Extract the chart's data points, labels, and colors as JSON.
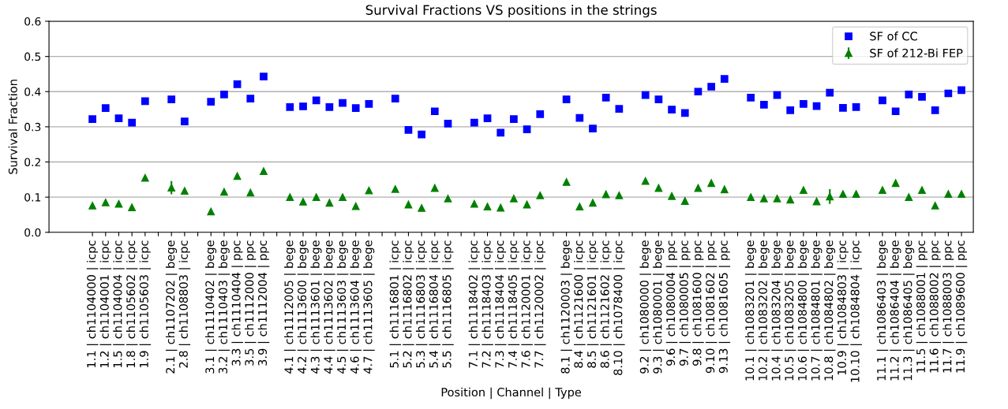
{
  "chart_data": {
    "type": "scatter",
    "title": "Survival Fractions VS positions in the strings",
    "xlabel": "Position | Channel | Type",
    "ylabel": "Survival Fraction",
    "categories": [
      "1.1 | ch1104000 | icpc",
      "1.2 | ch1104001 | icpc",
      "1.5 | ch1104004 | icpc",
      "1.8 | ch1105602 | icpc",
      "1.9 | ch1105603 | icpc",
      null,
      "2.1 | ch1107202 | bege",
      "2.8 | ch1108803 | icpc",
      null,
      "3.1 | ch1110402 | bege",
      "3.2 | ch1110403 | bege",
      "3.3 | ch1110404 | ppc",
      "3.5 | ch1112000 | ppc",
      "3.9 | ch1112004 | ppc",
      null,
      "4.1 | ch1112005 | bege",
      "4.2 | ch1113600 | bege",
      "4.3 | ch1113601 | bege",
      "4.4 | ch1113602 | bege",
      "4.5 | ch1113603 | bege",
      "4.6 | ch1113604 | bege",
      "4.7 | ch1113605 | bege",
      null,
      "5.1 | ch1116801 | icpc",
      "5.2 | ch1116802 | icpc",
      "5.3 | ch1116803 | icpc",
      "5.4 | ch1116804 | icpc",
      "5.5 | ch1116805 | icpc",
      null,
      "7.1 | ch1118402 | icpc",
      "7.2 | ch1118403 | icpc",
      "7.3 | ch1118404 | icpc",
      "7.4 | ch1118405 | icpc",
      "7.6 | ch1120001 | icpc",
      "7.7 | ch1120002 | icpc",
      null,
      "8.1 | ch1120003 | bege",
      "8.4 | ch1121600 | icpc",
      "8.5 | ch1121601 | icpc",
      "8.6 | ch1121602 | icpc",
      "8.10 | ch1078400 | icpc",
      null,
      "9.2 | ch1080000 | bege",
      "9.3 | ch1080001 | bege",
      "9.6 | ch1080004 | ppc",
      "9.7 | ch1080005 | ppc",
      "9.8 | ch1081600 | ppc",
      "9.10 | ch1081602 | ppc",
      "9.13 | ch1081605 | ppc",
      null,
      "10.1 | ch1083201 | bege",
      "10.2 | ch1083202 | bege",
      "10.4 | ch1083204 | bege",
      "10.5 | ch1083205 | bege",
      "10.6 | ch1084800 | bege",
      "10.7 | ch1084801 | bege",
      "10.8 | ch1084802 | bege",
      "10.9 | ch1084803 | icpc",
      "10.10 | ch1084804 | icpc",
      null,
      "11.1 | ch1086403 | bege",
      "11.2 | ch1086404 | bege",
      "11.3 | ch1086405 | bege",
      "11.5 | ch1088001 | ppc",
      "11.6 | ch1088002 | ppc",
      "11.7 | ch1088003 | ppc",
      "11.9 | ch1089600 | ppc"
    ],
    "series": [
      {
        "name": "SF of CC",
        "color": "#0000ff",
        "marker": "square",
        "values": [
          0.322,
          0.353,
          0.324,
          0.312,
          0.373,
          null,
          0.378,
          0.315,
          null,
          0.371,
          0.392,
          0.421,
          0.38,
          0.443,
          null,
          0.356,
          0.358,
          0.375,
          0.356,
          0.368,
          0.353,
          0.365,
          null,
          0.38,
          0.291,
          0.278,
          0.344,
          0.309,
          null,
          0.312,
          0.324,
          0.283,
          0.322,
          0.293,
          0.336,
          null,
          0.378,
          0.325,
          0.295,
          0.383,
          0.351,
          null,
          0.39,
          0.378,
          0.349,
          0.339,
          0.4,
          0.414,
          0.436,
          null,
          0.383,
          0.363,
          0.39,
          0.347,
          0.365,
          0.359,
          0.397,
          0.354,
          0.356,
          null,
          0.375,
          0.344,
          0.392,
          0.385,
          0.347,
          0.395,
          0.404
        ]
      },
      {
        "name": "SF of 212-Bi FEP",
        "color": "#008000",
        "marker": "triangle",
        "values": [
          0.076,
          0.085,
          0.081,
          0.071,
          0.155,
          null,
          0.127,
          0.118,
          null,
          0.059,
          0.115,
          0.16,
          0.113,
          0.174,
          null,
          0.1,
          0.087,
          0.1,
          0.084,
          0.1,
          0.074,
          0.119,
          null,
          0.123,
          0.079,
          0.069,
          0.126,
          0.096,
          null,
          0.081,
          0.073,
          0.07,
          0.096,
          0.079,
          0.105,
          null,
          0.143,
          0.073,
          0.084,
          0.108,
          0.105,
          null,
          0.146,
          0.126,
          0.103,
          0.089,
          0.126,
          0.14,
          0.122,
          null,
          0.1,
          0.096,
          0.096,
          0.093,
          0.12,
          0.088,
          0.102,
          0.109,
          0.109,
          null,
          0.12,
          0.14,
          0.1,
          0.12,
          0.076,
          0.109,
          0.109
        ],
        "errors": [
          null,
          null,
          null,
          null,
          null,
          null,
          0.019,
          null,
          null,
          null,
          null,
          null,
          null,
          null,
          null,
          null,
          null,
          null,
          null,
          null,
          null,
          null,
          null,
          null,
          null,
          null,
          null,
          null,
          null,
          null,
          null,
          null,
          null,
          null,
          null,
          null,
          null,
          null,
          null,
          null,
          null,
          null,
          null,
          null,
          null,
          null,
          null,
          null,
          null,
          null,
          null,
          null,
          null,
          null,
          null,
          null,
          0.021,
          null,
          null,
          null,
          null,
          null,
          null,
          null,
          null,
          null,
          null
        ]
      }
    ],
    "ylim": [
      0,
      0.6
    ],
    "yticks": [
      {
        "value": 0,
        "label": "0.0"
      },
      0.1,
      0.2,
      0.3,
      0.4,
      0.5,
      0.6
    ],
    "grid": "y",
    "legend": "top right"
  }
}
